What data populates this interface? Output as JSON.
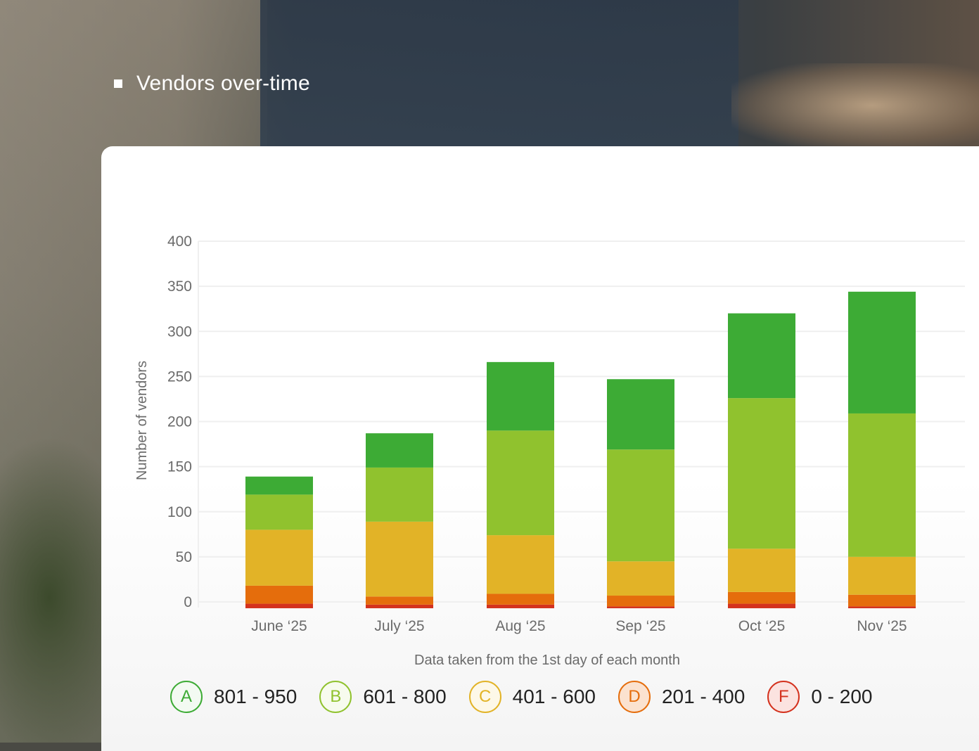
{
  "section_title": "Vendors over-time",
  "chart_data": {
    "type": "bar",
    "stacked": true,
    "categories": [
      "June ‘25",
      "July ‘25",
      "Aug ‘25",
      "Sep ‘25",
      "Oct ‘25",
      "Nov ‘25"
    ],
    "series": [
      {
        "name": "F",
        "color": "#d4321e",
        "values": [
          5,
          4,
          4,
          2,
          5,
          2
        ]
      },
      {
        "name": "D",
        "color": "#e56d0c",
        "values": [
          20,
          9,
          12,
          12,
          13,
          13
        ]
      },
      {
        "name": "C",
        "color": "#e2b327",
        "values": [
          62,
          83,
          65,
          38,
          48,
          42
        ]
      },
      {
        "name": "B",
        "color": "#90c22e",
        "values": [
          39,
          60,
          116,
          124,
          167,
          159
        ]
      },
      {
        "name": "A",
        "color": "#3dab35",
        "values": [
          20,
          38,
          76,
          78,
          94,
          135
        ]
      }
    ],
    "ylim": [
      0,
      400
    ],
    "yticks": [
      0,
      50,
      100,
      150,
      200,
      250,
      300,
      350,
      400
    ],
    "y_offset_below_zero": 7,
    "ylabel": "Number of vendors",
    "xlabel": "Data taken from the 1st day of each month",
    "grid": true
  },
  "legend": [
    {
      "grade": "A",
      "range": "801 - 950",
      "color": "#3dab35",
      "fill": "#f3faf2"
    },
    {
      "grade": "B",
      "range": "601 - 800",
      "color": "#90c22e",
      "fill": "#f7fbee"
    },
    {
      "grade": "C",
      "range": "401 - 600",
      "color": "#e2b327",
      "fill": "#fdf8e8"
    },
    {
      "grade": "D",
      "range": "201 - 400",
      "color": "#e56d0c",
      "fill": "#fbe2cf"
    },
    {
      "grade": "F",
      "range": "0 - 200",
      "color": "#d4321e",
      "fill": "#fbe3e0"
    }
  ]
}
